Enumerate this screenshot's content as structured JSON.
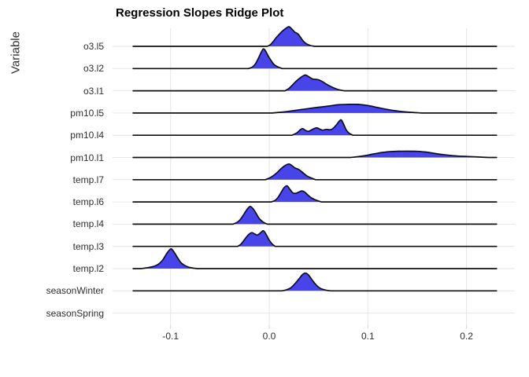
{
  "title": "Regression Slopes Ridge Plot",
  "colors": {
    "ridge_fill": "#4745ea",
    "ridge_outline": "#101010",
    "gridline": "#e6e6e6",
    "axis_tick": "#d4d4d4",
    "axis_text": "#2e2e2e",
    "title_text": "#000000",
    "background": "#ffffff"
  },
  "chart_data": {
    "type": "area",
    "subtype": "ridgeline",
    "title": "Regression Slopes Ridge Plot",
    "xlabel": "",
    "ylabel": "Variable",
    "grid": true,
    "legend": false,
    "xlim": [
      -0.159,
      0.249
    ],
    "x_ticks": [
      -0.1,
      0.0,
      0.1,
      0.2
    ],
    "x_tick_labels": [
      "-0.1",
      "0.0",
      "0.1",
      "0.2"
    ],
    "baseline_range": [
      -0.138,
      0.2305
    ],
    "categories": [
      "o3.l5",
      "o3.l2",
      "o3.l1",
      "pm10.l5",
      "pm10.l4",
      "pm10.l1",
      "temp.l7",
      "temp.l6",
      "temp.l4",
      "temp.l3",
      "temp.l2",
      "seasonWinter",
      "seasonSpring"
    ],
    "height_units": "px",
    "series": [
      {
        "name": "o3.l5",
        "mode": 0.021,
        "baseline": true,
        "points": [
          [
            -0.002,
            0
          ],
          [
            0.001,
            2
          ],
          [
            0.004,
            6
          ],
          [
            0.007,
            11
          ],
          [
            0.01,
            15
          ],
          [
            0.013,
            19
          ],
          [
            0.017,
            23
          ],
          [
            0.02,
            25
          ],
          [
            0.023,
            22
          ],
          [
            0.026,
            18
          ],
          [
            0.029,
            16
          ],
          [
            0.032,
            11
          ],
          [
            0.035,
            6
          ],
          [
            0.038,
            3
          ],
          [
            0.042,
            1
          ],
          [
            0.046,
            0
          ]
        ]
      },
      {
        "name": "o3.l2",
        "mode": -0.006,
        "baseline": true,
        "points": [
          [
            -0.021,
            0
          ],
          [
            -0.017,
            2
          ],
          [
            -0.014,
            6
          ],
          [
            -0.011,
            13
          ],
          [
            -0.008,
            21
          ],
          [
            -0.006,
            25
          ],
          [
            -0.004,
            23
          ],
          [
            -0.001,
            16
          ],
          [
            0.002,
            10
          ],
          [
            0.005,
            5
          ],
          [
            0.009,
            2
          ],
          [
            0.013,
            0
          ]
        ]
      },
      {
        "name": "o3.l1",
        "mode": 0.037,
        "baseline": true,
        "points": [
          [
            0.016,
            0
          ],
          [
            0.02,
            3
          ],
          [
            0.024,
            8
          ],
          [
            0.028,
            13
          ],
          [
            0.032,
            17
          ],
          [
            0.035,
            19.5
          ],
          [
            0.037,
            20
          ],
          [
            0.04,
            18
          ],
          [
            0.044,
            15
          ],
          [
            0.048,
            14.5
          ],
          [
            0.052,
            13
          ],
          [
            0.056,
            10
          ],
          [
            0.06,
            7
          ],
          [
            0.065,
            4
          ],
          [
            0.07,
            1.5
          ],
          [
            0.076,
            0
          ]
        ]
      },
      {
        "name": "pm10.l5",
        "mode": 0.085,
        "baseline": true,
        "points": [
          [
            0.003,
            0
          ],
          [
            0.012,
            1
          ],
          [
            0.022,
            2.5
          ],
          [
            0.033,
            4.5
          ],
          [
            0.045,
            6.5
          ],
          [
            0.058,
            8.5
          ],
          [
            0.07,
            10.5
          ],
          [
            0.08,
            11
          ],
          [
            0.09,
            11
          ],
          [
            0.1,
            9.5
          ],
          [
            0.11,
            7
          ],
          [
            0.12,
            4.5
          ],
          [
            0.13,
            2.5
          ],
          [
            0.142,
            1
          ],
          [
            0.155,
            0
          ]
        ]
      },
      {
        "name": "pm10.l4",
        "mode": 0.073,
        "baseline": true,
        "points": [
          [
            0.023,
            0
          ],
          [
            0.028,
            3
          ],
          [
            0.0315,
            7
          ],
          [
            0.034,
            8.5
          ],
          [
            0.037,
            6
          ],
          [
            0.04,
            5
          ],
          [
            0.044,
            7.5
          ],
          [
            0.048,
            9.5
          ],
          [
            0.051,
            8
          ],
          [
            0.054,
            6.5
          ],
          [
            0.058,
            7.5
          ],
          [
            0.061,
            7
          ],
          [
            0.064,
            8
          ],
          [
            0.068,
            13
          ],
          [
            0.071,
            18
          ],
          [
            0.073,
            19.5
          ],
          [
            0.0755,
            14
          ],
          [
            0.078,
            7
          ],
          [
            0.081,
            2.5
          ],
          [
            0.085,
            0
          ]
        ]
      },
      {
        "name": "pm10.l1",
        "mode": 0.14,
        "baseline": true,
        "points": [
          [
            0.082,
            0
          ],
          [
            0.09,
            1
          ],
          [
            0.098,
            2.5
          ],
          [
            0.106,
            4.5
          ],
          [
            0.114,
            6.3
          ],
          [
            0.122,
            7.4
          ],
          [
            0.13,
            7.9
          ],
          [
            0.14,
            8
          ],
          [
            0.15,
            7.8
          ],
          [
            0.158,
            7
          ],
          [
            0.166,
            5.5
          ],
          [
            0.174,
            4
          ],
          [
            0.182,
            2.8
          ],
          [
            0.192,
            1.8
          ],
          [
            0.202,
            1.2
          ],
          [
            0.212,
            0.6
          ],
          [
            0.222,
            0
          ]
        ]
      },
      {
        "name": "temp.l7",
        "mode": 0.021,
        "baseline": true,
        "points": [
          [
            -0.004,
            0
          ],
          [
            0.0,
            2
          ],
          [
            0.004,
            5
          ],
          [
            0.008,
            9
          ],
          [
            0.012,
            14
          ],
          [
            0.016,
            18
          ],
          [
            0.02,
            20
          ],
          [
            0.023,
            18
          ],
          [
            0.026,
            15
          ],
          [
            0.03,
            13
          ],
          [
            0.034,
            9
          ],
          [
            0.038,
            5
          ],
          [
            0.042,
            2.5
          ],
          [
            0.047,
            0
          ]
        ]
      },
      {
        "name": "temp.l6",
        "mode": 0.018,
        "baseline": true,
        "points": [
          [
            0.002,
            0
          ],
          [
            0.006,
            2
          ],
          [
            0.009,
            6
          ],
          [
            0.012,
            12
          ],
          [
            0.015,
            18
          ],
          [
            0.018,
            20.5
          ],
          [
            0.021,
            16
          ],
          [
            0.024,
            11.5
          ],
          [
            0.027,
            11
          ],
          [
            0.03,
            12.5
          ],
          [
            0.033,
            14
          ],
          [
            0.036,
            12.5
          ],
          [
            0.039,
            9
          ],
          [
            0.043,
            5
          ],
          [
            0.048,
            2
          ],
          [
            0.053,
            0
          ]
        ]
      },
      {
        "name": "temp.l4",
        "mode": -0.02,
        "baseline": true,
        "points": [
          [
            -0.037,
            0
          ],
          [
            -0.033,
            2
          ],
          [
            -0.03,
            5
          ],
          [
            -0.027,
            10
          ],
          [
            -0.024,
            16
          ],
          [
            -0.021,
            21
          ],
          [
            -0.019,
            22.5
          ],
          [
            -0.016,
            19
          ],
          [
            -0.013,
            13
          ],
          [
            -0.01,
            7
          ],
          [
            -0.006,
            2.5
          ],
          [
            -0.002,
            0
          ]
        ]
      },
      {
        "name": "temp.l3",
        "mode": -0.006,
        "baseline": true,
        "points": [
          [
            -0.032,
            0
          ],
          [
            -0.029,
            2.5
          ],
          [
            -0.026,
            7
          ],
          [
            -0.023,
            12
          ],
          [
            -0.02,
            16
          ],
          [
            -0.0175,
            17.5
          ],
          [
            -0.015,
            16
          ],
          [
            -0.012,
            14.5
          ],
          [
            -0.009,
            17
          ],
          [
            -0.006,
            20
          ],
          [
            -0.003,
            15
          ],
          [
            0.0,
            8
          ],
          [
            0.003,
            3
          ],
          [
            0.006,
            0
          ]
        ]
      },
      {
        "name": "temp.l2",
        "mode": -0.1,
        "baseline": true,
        "points": [
          [
            -0.13,
            0
          ],
          [
            -0.124,
            1
          ],
          [
            -0.118,
            2.5
          ],
          [
            -0.113,
            5
          ],
          [
            -0.108,
            11
          ],
          [
            -0.104,
            19
          ],
          [
            -0.1,
            25
          ],
          [
            -0.097,
            22
          ],
          [
            -0.093,
            14
          ],
          [
            -0.089,
            7
          ],
          [
            -0.084,
            3
          ],
          [
            -0.079,
            1
          ],
          [
            -0.073,
            0
          ]
        ]
      },
      {
        "name": "seasonWinter",
        "mode": 0.037,
        "baseline": true,
        "points": [
          [
            0.013,
            0
          ],
          [
            0.018,
            1.5
          ],
          [
            0.022,
            4
          ],
          [
            0.026,
            9
          ],
          [
            0.03,
            15
          ],
          [
            0.034,
            21
          ],
          [
            0.037,
            22.5
          ],
          [
            0.04,
            20
          ],
          [
            0.044,
            13
          ],
          [
            0.048,
            7
          ],
          [
            0.052,
            3
          ],
          [
            0.057,
            1
          ],
          [
            0.062,
            0
          ]
        ]
      },
      {
        "name": "seasonSpring",
        "mode": null,
        "baseline": false,
        "points": []
      }
    ]
  }
}
